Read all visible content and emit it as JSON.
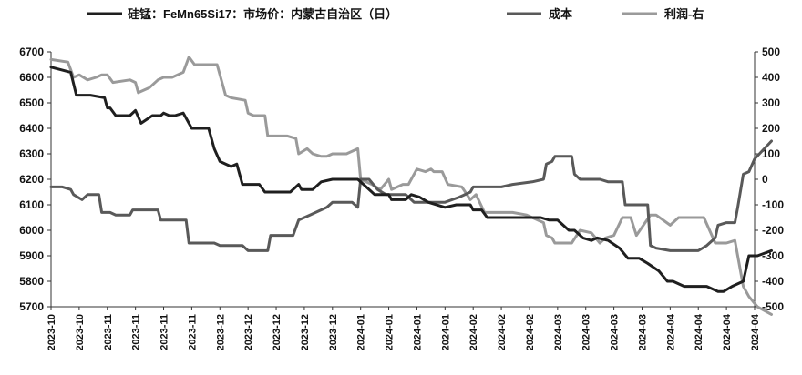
{
  "chart_data": {
    "type": "line",
    "legend_position": "top",
    "grid": false,
    "y_left": {
      "min": 5700,
      "max": 6700,
      "ticks": [
        5700,
        5800,
        5900,
        6000,
        6100,
        6200,
        6300,
        6400,
        6500,
        6600,
        6700
      ]
    },
    "y_right": {
      "min": -500,
      "max": 500,
      "ticks": [
        -500,
        -400,
        -300,
        -200,
        -100,
        0,
        100,
        200,
        300,
        400,
        500
      ]
    },
    "x_tick_labels": [
      "2023-10",
      "2023-10",
      "2023-11",
      "2023-11",
      "2023-11",
      "2023-11",
      "2023-12",
      "2023-12",
      "2023-12",
      "2023-12",
      "2023-12",
      "2024-01",
      "2024-01",
      "2024-01",
      "2024-01",
      "2024-02",
      "2024-02",
      "2024-02",
      "2024-03",
      "2024-03",
      "2024-03",
      "2024-03",
      "2024-04",
      "2024-04",
      "2024-04",
      "2024-04"
    ],
    "series": [
      {
        "name": "硅锰：FeMn65Si17：市场价：内蒙古自治区（日）",
        "axis": "left",
        "color": "#1f1f1f",
        "points": [
          [
            0,
            6640
          ],
          [
            0.7,
            6620
          ],
          [
            0.9,
            6530
          ],
          [
            1.4,
            6530
          ],
          [
            1.9,
            6520
          ],
          [
            2.0,
            6480
          ],
          [
            2.1,
            6480
          ],
          [
            2.3,
            6450
          ],
          [
            2.8,
            6450
          ],
          [
            3.0,
            6470
          ],
          [
            3.2,
            6420
          ],
          [
            3.6,
            6450
          ],
          [
            3.9,
            6450
          ],
          [
            4.0,
            6460
          ],
          [
            4.2,
            6450
          ],
          [
            4.4,
            6450
          ],
          [
            4.7,
            6460
          ],
          [
            5.0,
            6400
          ],
          [
            5.6,
            6400
          ],
          [
            5.8,
            6320
          ],
          [
            6.0,
            6270
          ],
          [
            6.4,
            6250
          ],
          [
            6.6,
            6260
          ],
          [
            6.8,
            6180
          ],
          [
            7.4,
            6180
          ],
          [
            7.6,
            6150
          ],
          [
            8.5,
            6150
          ],
          [
            8.8,
            6180
          ],
          [
            8.9,
            6160
          ],
          [
            9.3,
            6160
          ],
          [
            9.6,
            6190
          ],
          [
            10.0,
            6200
          ],
          [
            10.5,
            6200
          ],
          [
            10.9,
            6200
          ],
          [
            11.2,
            6170
          ],
          [
            11.5,
            6140
          ],
          [
            12.0,
            6140
          ],
          [
            12.1,
            6120
          ],
          [
            12.6,
            6120
          ],
          [
            12.8,
            6140
          ],
          [
            13.1,
            6130
          ],
          [
            13.4,
            6110
          ],
          [
            14.0,
            6090
          ],
          [
            14.4,
            6100
          ],
          [
            14.9,
            6100
          ],
          [
            15.0,
            6080
          ],
          [
            15.3,
            6080
          ],
          [
            15.5,
            6050
          ],
          [
            16.4,
            6050
          ],
          [
            16.6,
            6050
          ],
          [
            17.4,
            6050
          ],
          [
            17.7,
            6040
          ],
          [
            18.0,
            6040
          ],
          [
            18.4,
            6000
          ],
          [
            18.6,
            6000
          ],
          [
            18.9,
            5970
          ],
          [
            19.2,
            5960
          ],
          [
            19.4,
            5970
          ],
          [
            19.8,
            5960
          ],
          [
            20.2,
            5930
          ],
          [
            20.5,
            5890
          ],
          [
            20.9,
            5890
          ],
          [
            21.2,
            5870
          ],
          [
            21.6,
            5840
          ],
          [
            21.9,
            5800
          ],
          [
            22.1,
            5800
          ],
          [
            22.5,
            5780
          ],
          [
            23.3,
            5780
          ],
          [
            23.7,
            5760
          ],
          [
            23.9,
            5760
          ],
          [
            24.2,
            5780
          ],
          [
            24.6,
            5800
          ],
          [
            24.8,
            5900
          ],
          [
            25.1,
            5900
          ],
          [
            25.6,
            5920
          ]
        ]
      },
      {
        "name": "成本",
        "axis": "left",
        "color": "#595959",
        "points": [
          [
            0,
            6170
          ],
          [
            0.4,
            6170
          ],
          [
            0.7,
            6160
          ],
          [
            0.8,
            6140
          ],
          [
            1.1,
            6120
          ],
          [
            1.3,
            6140
          ],
          [
            1.7,
            6140
          ],
          [
            1.8,
            6070
          ],
          [
            2.1,
            6070
          ],
          [
            2.3,
            6060
          ],
          [
            2.8,
            6060
          ],
          [
            2.9,
            6080
          ],
          [
            3.8,
            6080
          ],
          [
            3.9,
            6040
          ],
          [
            4.8,
            6040
          ],
          [
            4.9,
            5950
          ],
          [
            5.2,
            5950
          ],
          [
            5.4,
            5950
          ],
          [
            5.8,
            5950
          ],
          [
            6.0,
            5940
          ],
          [
            6.8,
            5940
          ],
          [
            7.0,
            5920
          ],
          [
            7.7,
            5920
          ],
          [
            7.8,
            5980
          ],
          [
            8.0,
            5980
          ],
          [
            8.6,
            5980
          ],
          [
            8.8,
            6040
          ],
          [
            9.2,
            6060
          ],
          [
            9.4,
            6070
          ],
          [
            9.8,
            6090
          ],
          [
            10.0,
            6110
          ],
          [
            10.7,
            6110
          ],
          [
            10.9,
            6090
          ],
          [
            11.0,
            6200
          ],
          [
            11.3,
            6200
          ],
          [
            11.6,
            6160
          ],
          [
            11.9,
            6140
          ],
          [
            12.6,
            6140
          ],
          [
            12.9,
            6110
          ],
          [
            13.6,
            6110
          ],
          [
            14.0,
            6110
          ],
          [
            14.5,
            6130
          ],
          [
            14.9,
            6150
          ],
          [
            15.0,
            6170
          ],
          [
            16.0,
            6170
          ],
          [
            16.4,
            6180
          ],
          [
            17.1,
            6190
          ],
          [
            17.5,
            6200
          ],
          [
            17.6,
            6260
          ],
          [
            17.8,
            6270
          ],
          [
            17.9,
            6290
          ],
          [
            18.5,
            6290
          ],
          [
            18.6,
            6220
          ],
          [
            18.8,
            6200
          ],
          [
            19.5,
            6200
          ],
          [
            19.8,
            6190
          ],
          [
            20.3,
            6190
          ],
          [
            20.4,
            6100
          ],
          [
            21.2,
            6100
          ],
          [
            21.3,
            5940
          ],
          [
            21.5,
            5930
          ],
          [
            22.0,
            5920
          ],
          [
            23.0,
            5920
          ],
          [
            23.3,
            5940
          ],
          [
            23.6,
            5970
          ],
          [
            23.7,
            6020
          ],
          [
            24.0,
            6030
          ],
          [
            24.3,
            6030
          ],
          [
            24.4,
            6090
          ],
          [
            24.6,
            6220
          ],
          [
            24.8,
            6230
          ],
          [
            25.0,
            6280
          ],
          [
            25.6,
            6350
          ]
        ]
      },
      {
        "name": "利润-右",
        "axis": "right",
        "color": "#9a9a9a",
        "points": [
          [
            0,
            470
          ],
          [
            0.6,
            460
          ],
          [
            0.8,
            400
          ],
          [
            1.0,
            410
          ],
          [
            1.3,
            390
          ],
          [
            1.6,
            400
          ],
          [
            1.8,
            410
          ],
          [
            2.0,
            410
          ],
          [
            2.2,
            380
          ],
          [
            2.8,
            390
          ],
          [
            3.0,
            380
          ],
          [
            3.1,
            340
          ],
          [
            3.5,
            360
          ],
          [
            3.8,
            390
          ],
          [
            4.0,
            400
          ],
          [
            4.3,
            400
          ],
          [
            4.7,
            420
          ],
          [
            4.9,
            480
          ],
          [
            5.1,
            450
          ],
          [
            5.5,
            450
          ],
          [
            5.9,
            450
          ],
          [
            6.1,
            370
          ],
          [
            6.2,
            330
          ],
          [
            6.4,
            320
          ],
          [
            6.9,
            310
          ],
          [
            7.0,
            260
          ],
          [
            7.2,
            250
          ],
          [
            7.6,
            250
          ],
          [
            7.7,
            170
          ],
          [
            8.4,
            170
          ],
          [
            8.7,
            160
          ],
          [
            8.8,
            100
          ],
          [
            9.1,
            120
          ],
          [
            9.3,
            100
          ],
          [
            9.6,
            90
          ],
          [
            9.8,
            90
          ],
          [
            10.0,
            100
          ],
          [
            10.5,
            100
          ],
          [
            10.9,
            120
          ],
          [
            11.0,
            0
          ],
          [
            11.4,
            -20
          ],
          [
            11.7,
            -40
          ],
          [
            12.0,
            0
          ],
          [
            12.1,
            -40
          ],
          [
            12.5,
            -20
          ],
          [
            12.7,
            -20
          ],
          [
            13.0,
            40
          ],
          [
            13.3,
            30
          ],
          [
            13.5,
            40
          ],
          [
            13.6,
            30
          ],
          [
            13.9,
            30
          ],
          [
            14.1,
            -20
          ],
          [
            14.6,
            -30
          ],
          [
            14.9,
            -80
          ],
          [
            15.1,
            -60
          ],
          [
            15.4,
            -130
          ],
          [
            16.4,
            -130
          ],
          [
            16.9,
            -140
          ],
          [
            17.5,
            -170
          ],
          [
            17.6,
            -220
          ],
          [
            17.8,
            -230
          ],
          [
            17.9,
            -250
          ],
          [
            18.5,
            -250
          ],
          [
            18.8,
            -200
          ],
          [
            19.2,
            -210
          ],
          [
            19.5,
            -250
          ],
          [
            19.7,
            -230
          ],
          [
            20.0,
            -220
          ],
          [
            20.3,
            -150
          ],
          [
            20.6,
            -150
          ],
          [
            20.8,
            -220
          ],
          [
            21.3,
            -140
          ],
          [
            21.5,
            -140
          ],
          [
            22.0,
            -180
          ],
          [
            22.3,
            -150
          ],
          [
            23.2,
            -150
          ],
          [
            23.4,
            -200
          ],
          [
            23.6,
            -250
          ],
          [
            24.0,
            -250
          ],
          [
            24.3,
            -240
          ],
          [
            24.6,
            -420
          ],
          [
            24.8,
            -460
          ],
          [
            25.1,
            -500
          ],
          [
            25.6,
            -530
          ]
        ]
      }
    ]
  }
}
